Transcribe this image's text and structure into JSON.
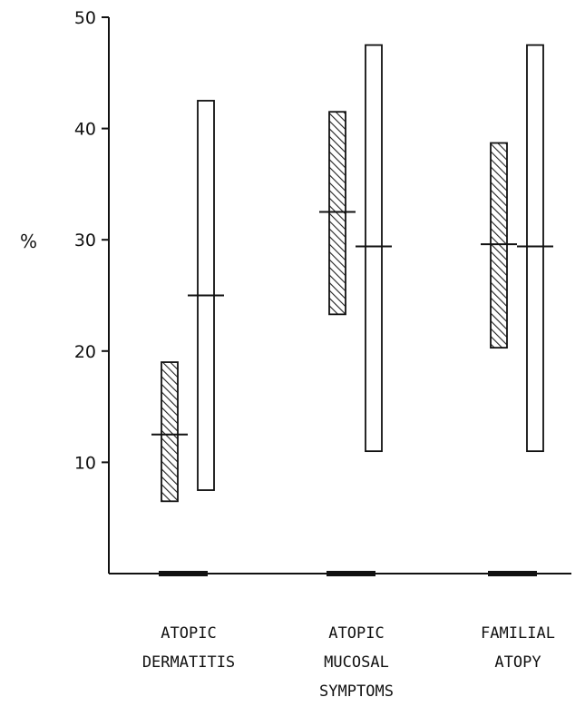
{
  "chart_data": {
    "type": "bar",
    "ylabel": "%",
    "ylim": [
      0,
      50
    ],
    "yticks": [
      10,
      20,
      30,
      40,
      50
    ],
    "categories": [
      {
        "lines": [
          "ATOPIC",
          "DERMATITIS"
        ]
      },
      {
        "lines": [
          "ATOPIC",
          "MUCOSAL",
          "SYMPTOMS"
        ]
      },
      {
        "lines": [
          "FAMILIAL",
          "ATOPY"
        ]
      }
    ],
    "series": [
      {
        "style": "hatched",
        "low": [
          6.5,
          23.3,
          20.3
        ],
        "high": [
          19.0,
          41.5,
          38.7
        ],
        "mid": [
          12.5,
          32.5,
          29.6
        ]
      },
      {
        "style": "open",
        "low": [
          7.5,
          11.0,
          11.0
        ],
        "high": [
          42.5,
          47.5,
          47.5
        ],
        "mid": [
          25.0,
          29.4,
          29.4
        ]
      }
    ],
    "baseline_markers": [
      0,
      0,
      0
    ]
  }
}
